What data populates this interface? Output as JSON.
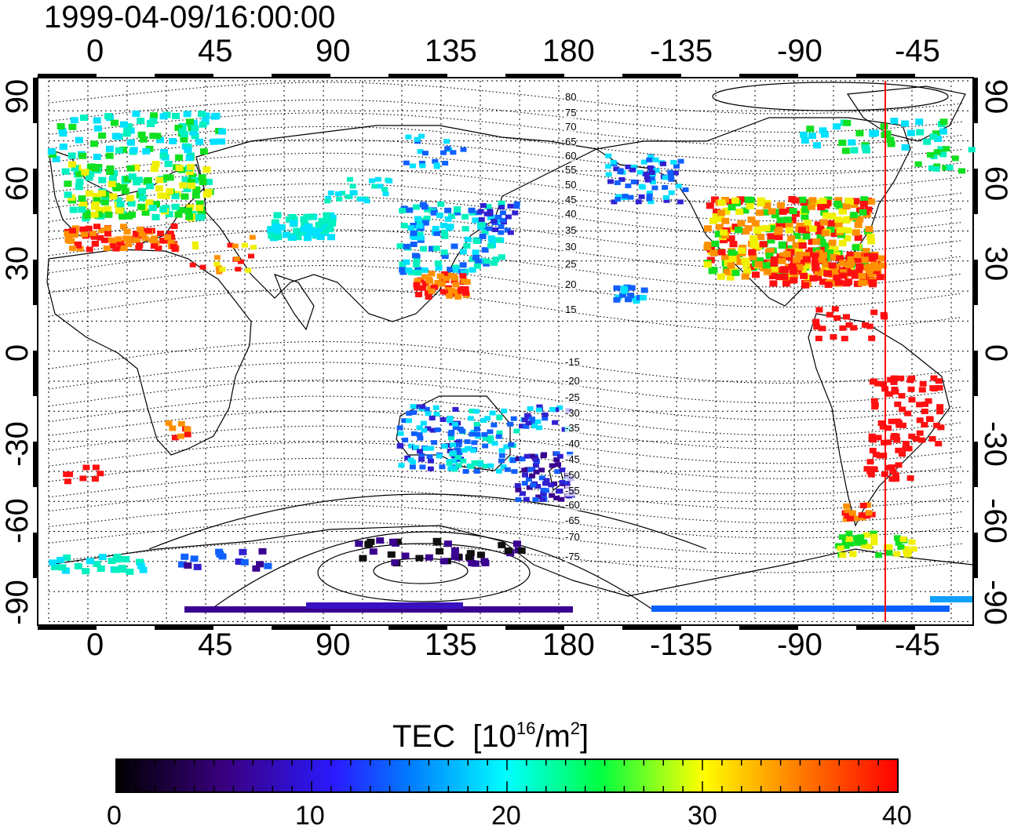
{
  "timestamp": "1999-04-09/16:00:00",
  "map": {
    "top_lon_ticks": [
      "0",
      "45",
      "90",
      "135",
      "180",
      "-135",
      "-90",
      "-45"
    ],
    "bottom_lon_ticks": [
      "0",
      "45",
      "90",
      "135",
      "180",
      "-135",
      "-90",
      "-45"
    ],
    "lat_ticks": [
      "90",
      "60",
      "30",
      "0",
      "-30",
      "-60",
      "-90"
    ],
    "contour_labels": [
      "80",
      "75",
      "70",
      "65",
      "60",
      "55",
      "50",
      "45",
      "40",
      "35",
      "30",
      "25",
      "20",
      "15",
      "-15",
      "-20",
      "-25",
      "-30",
      "-35",
      "-40",
      "-45",
      "-50",
      "-55",
      "-60",
      "-65",
      "-70",
      "-75"
    ],
    "reference_line_color": "#ff0000",
    "grid": "dotted"
  },
  "colorbar": {
    "title": "TEC",
    "unit_base": "10",
    "unit_exp": "16",
    "unit_rest": "/m",
    "unit_sq": "2",
    "ticks": [
      "0",
      "10",
      "20",
      "30",
      "40"
    ],
    "colors": [
      "#000000",
      "#3a0080",
      "#0000ff",
      "#00ffff",
      "#00ff00",
      "#ffff00",
      "#ff8000",
      "#ff0000"
    ]
  }
}
